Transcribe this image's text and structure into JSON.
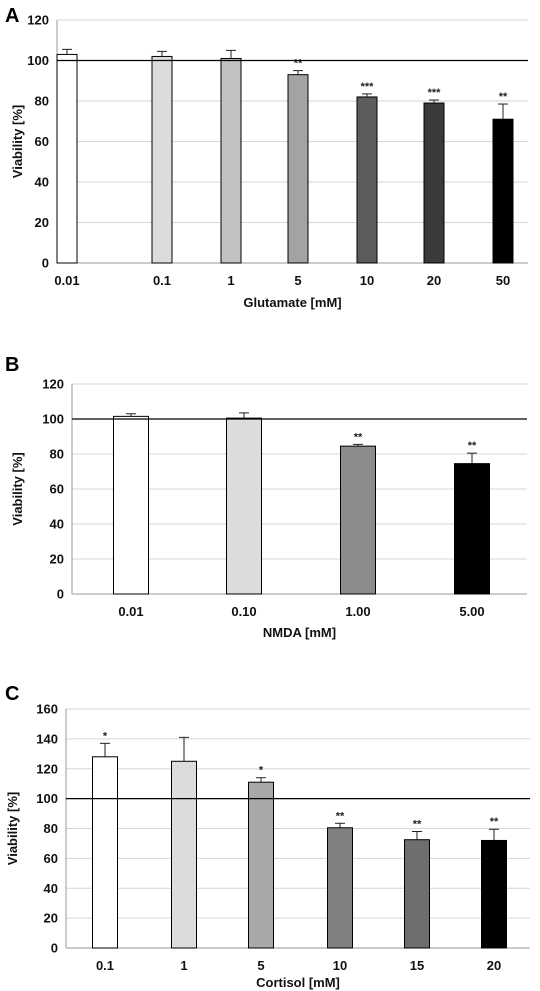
{
  "chart_data": [
    {
      "type": "bar",
      "panel_label": "A",
      "categories": [
        "0.01",
        "0.1",
        "1",
        "5",
        "10",
        "20",
        "50"
      ],
      "values": [
        103,
        102,
        101,
        93,
        82,
        79,
        71
      ],
      "errors": [
        2.5,
        2.5,
        4,
        2,
        1.5,
        1.5,
        7.5
      ],
      "annotations": [
        "",
        "",
        "",
        "**",
        "***",
        "***",
        "**"
      ],
      "colors": [
        "#ffffff",
        "#dcdcdc",
        "#c2c2c2",
        "#a3a3a3",
        "#5c5c5c",
        "#3a3a3a",
        "#000000"
      ],
      "xlabel": "Glutamate [mM]",
      "ylabel": "Viability [%]",
      "ylim": [
        0,
        120
      ],
      "yticks": [
        0,
        20,
        40,
        60,
        80,
        100,
        120
      ],
      "reference_line": 100,
      "grid": true
    },
    {
      "type": "bar",
      "panel_label": "B",
      "categories": [
        "0.01",
        "0.10",
        "1.00",
        "5.00"
      ],
      "values": [
        101.5,
        100.5,
        84.5,
        74.5
      ],
      "errors": [
        1.5,
        3,
        1,
        6
      ],
      "annotations": [
        "",
        "",
        "**",
        "**"
      ],
      "colors": [
        "#ffffff",
        "#dcdcdc",
        "#8c8c8c",
        "#000000"
      ],
      "xlabel": "NMDA [mM]",
      "ylabel": "Viability [%]",
      "ylim": [
        0,
        120
      ],
      "yticks": [
        0,
        20,
        40,
        60,
        80,
        100,
        120
      ],
      "reference_line": 100,
      "grid": true
    },
    {
      "type": "bar",
      "panel_label": "C",
      "categories": [
        "0.1",
        "1",
        "5",
        "10",
        "15",
        "20"
      ],
      "values": [
        128,
        125,
        111,
        80.5,
        72.5,
        72
      ],
      "errors": [
        9,
        16,
        3,
        3,
        5.5,
        7.5
      ],
      "annotations": [
        "*",
        "",
        "*",
        "**",
        "**",
        "**"
      ],
      "colors": [
        "#ffffff",
        "#dcdcdc",
        "#a8a8a8",
        "#808080",
        "#6e6e6e",
        "#000000"
      ],
      "xlabel": "Cortisol [mM]",
      "ylabel": "Viability [%]",
      "ylim": [
        0,
        160
      ],
      "yticks": [
        0,
        20,
        40,
        60,
        80,
        100,
        120,
        140,
        160
      ],
      "reference_line": 100,
      "grid": true
    }
  ]
}
